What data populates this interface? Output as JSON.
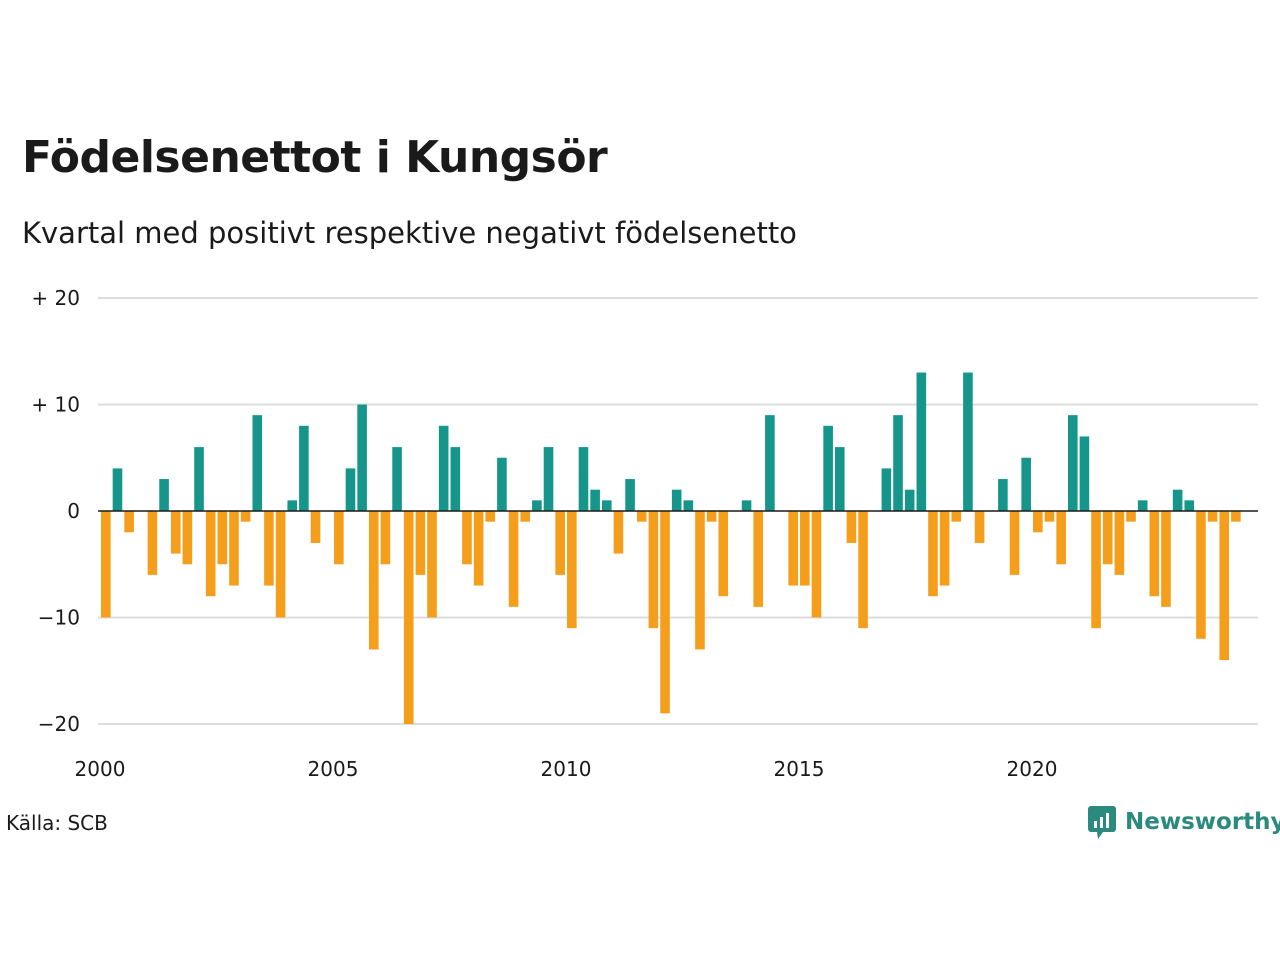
{
  "title": "Födelsenettot i Kungsör",
  "subtitle": "Kvartal med positivt respektive negativt födelsenetto",
  "source": "Källa: SCB",
  "brand": "Newsworthy",
  "colors": {
    "positive": "#16968a",
    "negative": "#f59e1c",
    "grid": "#dddddd",
    "zero_line": "#1a1a1a",
    "brand": "#2a8a7d"
  },
  "chart_data": {
    "type": "bar",
    "x_start": "2000 Q1",
    "x_tick_labels": [
      "2000",
      "2005",
      "2010",
      "2015",
      "2020"
    ],
    "y_tick_labels": [
      "+ 20",
      "+ 10",
      "0",
      "−10",
      "−20"
    ],
    "ylim": [
      -20,
      20
    ],
    "grid": true,
    "values": [
      -10,
      4,
      -2,
      0,
      -6,
      3,
      -4,
      -5,
      6,
      -8,
      -5,
      -7,
      -1,
      9,
      -7,
      -10,
      1,
      8,
      -3,
      0,
      -5,
      4,
      10,
      -13,
      -5,
      6,
      -20,
      -6,
      -10,
      8,
      6,
      -5,
      -7,
      -1,
      5,
      -9,
      -1,
      1,
      6,
      -6,
      -11,
      6,
      2,
      1,
      -4,
      3,
      -1,
      -11,
      -19,
      2,
      1,
      -13,
      -1,
      -8,
      0,
      1,
      -9,
      9,
      0,
      -7,
      -7,
      -10,
      8,
      6,
      -3,
      -11,
      0,
      4,
      9,
      2,
      13,
      -8,
      -7,
      -1,
      13,
      -3,
      0,
      3,
      -6,
      5,
      -2,
      -1,
      -5,
      9,
      7,
      -11,
      -5,
      -6,
      -1,
      1,
      -8,
      -9,
      2,
      1,
      -12,
      -1,
      -14,
      -1
    ]
  }
}
